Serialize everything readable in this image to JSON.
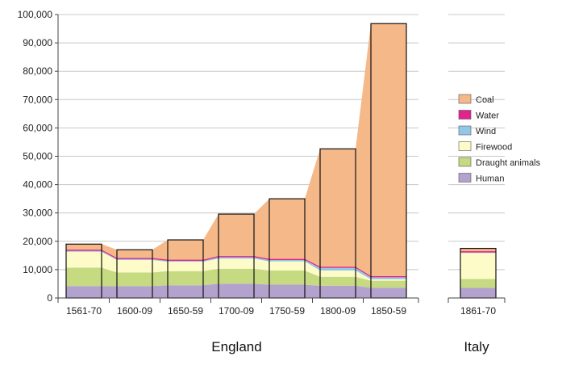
{
  "chart_data": {
    "type": "area",
    "ylim": [
      0,
      100000
    ],
    "yticks": [
      "0",
      "10,000",
      "20,000",
      "30,000",
      "40,000",
      "50,000",
      "60,000",
      "70,000",
      "80,000",
      "90,000",
      "100,000"
    ],
    "grid": true,
    "legend_position": "right",
    "series_order": [
      "Human",
      "Draught animals",
      "Firewood",
      "Wind",
      "Water",
      "Coal"
    ],
    "colors": {
      "Human": "#b3a2cd",
      "Draught animals": "#c6da82",
      "Firewood": "#fdfcc8",
      "Wind": "#92c7e6",
      "Water": "#e0248c",
      "Coal": "#f5b888"
    },
    "legend": [
      "Coal",
      "Water",
      "Wind",
      "Firewood",
      "Draught animals",
      "Human"
    ],
    "groups": [
      {
        "label": "England",
        "categories": [
          "1561-70",
          "1600-09",
          "1650-59",
          "1700-09",
          "1750-59",
          "1800-09",
          "1850-59"
        ],
        "series": [
          {
            "name": "Human",
            "values": [
              4200,
              4200,
              4500,
              5000,
              4700,
              4300,
              3600
            ]
          },
          {
            "name": "Draught animals",
            "values": [
              6500,
              4800,
              5000,
              5300,
              5000,
              3200,
              2500
            ]
          },
          {
            "name": "Firewood",
            "values": [
              5600,
              4400,
              3300,
              3600,
              3200,
              2200,
              500
            ]
          },
          {
            "name": "Wind",
            "values": [
              300,
              300,
              300,
              500,
              500,
              900,
              700
            ]
          },
          {
            "name": "Water",
            "values": [
              400,
              400,
              400,
              400,
              400,
              400,
              400
            ]
          },
          {
            "name": "Coal",
            "values": [
              2000,
              2900,
              7000,
              14800,
              21200,
              41600,
              89100
            ]
          }
        ]
      },
      {
        "label": "Italy",
        "categories": [
          "1861-70"
        ],
        "series": [
          {
            "name": "Human",
            "values": [
              3600
            ]
          },
          {
            "name": "Draught animals",
            "values": [
              3100
            ]
          },
          {
            "name": "Firewood",
            "values": [
              9200
            ]
          },
          {
            "name": "Wind",
            "values": [
              100
            ]
          },
          {
            "name": "Water",
            "values": [
              500
            ]
          },
          {
            "name": "Coal",
            "values": [
              1000
            ]
          }
        ]
      }
    ]
  }
}
